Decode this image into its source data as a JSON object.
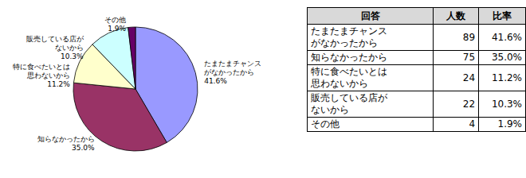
{
  "chart_data": {
    "type": "pie",
    "categories": [
      "たまたまチャンス\nがなかったから",
      "知らなかったから",
      "特に食べたいとは\n思わないから",
      "販売している店が\nないから",
      "その他"
    ],
    "values": [
      41.6,
      35.0,
      11.2,
      10.3,
      1.9
    ],
    "value_labels": [
      "41.6%",
      "35.0%",
      "11.2%",
      "10.3%",
      "1.9%"
    ],
    "colors": [
      "#9999ff",
      "#993366",
      "#ffffcc",
      "#ccffff",
      "#660066"
    ],
    "data_labels": true
  },
  "table": {
    "header": [
      "回答",
      "人数",
      "比率"
    ],
    "rows": [
      [
        "たまたまチャンス\nがなかったから",
        89,
        "41.6%"
      ],
      [
        "知らなかったから",
        75,
        "35.0%"
      ],
      [
        "特に食べたいとは\n思わないから",
        24,
        "11.2%"
      ],
      [
        "販売している店が\nないから",
        22,
        "10.3%"
      ],
      [
        "その他",
        4,
        "1.9%"
      ]
    ]
  }
}
